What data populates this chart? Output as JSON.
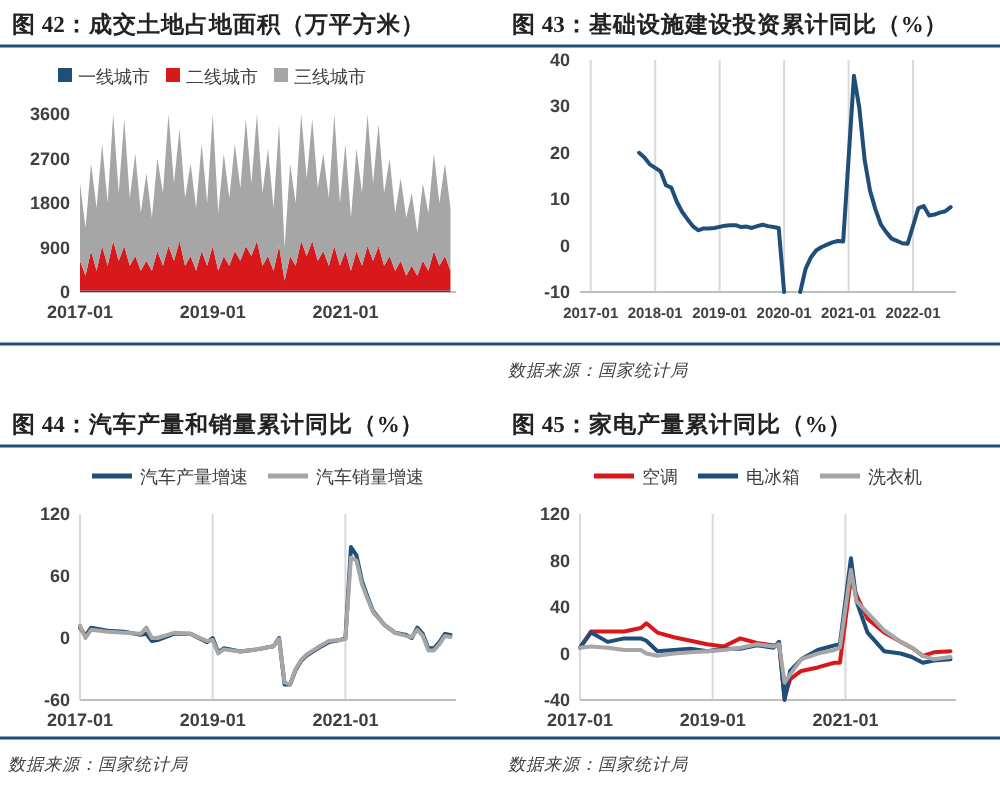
{
  "chart_data": [
    {
      "type": "area",
      "title": "图 42：成交土地占地面积（万平方米）",
      "stacked": true,
      "legend": "top",
      "xlim": [
        "2017-01",
        "2022-09"
      ],
      "xticks": [
        "2017-01",
        "2019-01",
        "2021-01"
      ],
      "ylim": [
        0,
        3600
      ],
      "yticks": [
        0,
        900,
        1800,
        2700,
        3600
      ],
      "x": [
        "2017-01",
        "2017-02",
        "2017-03",
        "2017-04",
        "2017-05",
        "2017-06",
        "2017-07",
        "2017-08",
        "2017-09",
        "2017-10",
        "2017-11",
        "2017-12",
        "2018-01",
        "2018-02",
        "2018-03",
        "2018-04",
        "2018-05",
        "2018-06",
        "2018-07",
        "2018-08",
        "2018-09",
        "2018-10",
        "2018-11",
        "2018-12",
        "2019-01",
        "2019-02",
        "2019-03",
        "2019-04",
        "2019-05",
        "2019-06",
        "2019-07",
        "2019-08",
        "2019-09",
        "2019-10",
        "2019-11",
        "2019-12",
        "2020-01",
        "2020-02",
        "2020-03",
        "2020-04",
        "2020-05",
        "2020-06",
        "2020-07",
        "2020-08",
        "2020-09",
        "2020-10",
        "2020-11",
        "2020-12",
        "2021-01",
        "2021-02",
        "2021-03",
        "2021-04",
        "2021-05",
        "2021-06",
        "2021-07",
        "2021-08",
        "2021-09",
        "2021-10",
        "2021-11",
        "2021-12",
        "2022-01",
        "2022-02",
        "2022-03",
        "2022-04",
        "2022-05",
        "2022-06",
        "2022-07",
        "2022-08"
      ],
      "series": [
        {
          "name": "一线城市",
          "color": "#1f4e79",
          "values": [
            30,
            30,
            30,
            30,
            30,
            30,
            30,
            30,
            30,
            30,
            30,
            30,
            30,
            30,
            30,
            30,
            30,
            30,
            30,
            30,
            30,
            30,
            30,
            30,
            30,
            30,
            30,
            30,
            30,
            30,
            30,
            30,
            30,
            30,
            30,
            30,
            30,
            30,
            30,
            30,
            30,
            30,
            30,
            30,
            30,
            30,
            30,
            30,
            30,
            30,
            30,
            30,
            30,
            30,
            30,
            30,
            30,
            30,
            30,
            30,
            30,
            30,
            30,
            30,
            30,
            30,
            30,
            30
          ]
        },
        {
          "name": "二线城市",
          "color": "#d7191c",
          "values": [
            600,
            300,
            800,
            400,
            900,
            500,
            1000,
            600,
            900,
            500,
            700,
            400,
            600,
            400,
            800,
            500,
            900,
            600,
            1000,
            500,
            700,
            400,
            800,
            500,
            900,
            400,
            700,
            500,
            800,
            600,
            900,
            700,
            1000,
            500,
            700,
            400,
            900,
            200,
            700,
            500,
            1000,
            700,
            1000,
            600,
            800,
            500,
            900,
            500,
            800,
            400,
            800,
            500,
            900,
            600,
            900,
            500,
            700,
            400,
            600,
            300,
            500,
            300,
            600,
            400,
            800,
            500,
            700,
            400
          ]
        },
        {
          "name": "三线城市",
          "color": "#a6a6a6",
          "values": [
            1570,
            970,
            1770,
            1270,
            2070,
            1270,
            2570,
            1370,
            2570,
            1370,
            2070,
            1170,
            1770,
            1070,
            1870,
            1470,
            2670,
            1570,
            2270,
            1370,
            1870,
            1270,
            2170,
            1270,
            2670,
            1170,
            2070,
            1370,
            2170,
            1470,
            2570,
            1470,
            2570,
            1470,
            2170,
            1270,
            2470,
            670,
            1870,
            1270,
            2570,
            1570,
            2470,
            1470,
            1970,
            1370,
            2670,
            1270,
            2170,
            1070,
            2070,
            1470,
            2670,
            1570,
            2470,
            1470,
            1970,
            1170,
            1670,
            1170,
            1470,
            870,
            1570,
            1170,
            1970,
            1270,
            1870,
            1270
          ]
        }
      ]
    },
    {
      "type": "line",
      "title": "图 43：基础设施建设投资累计同比（%）",
      "grid": "x",
      "xlim": [
        "2016-11",
        "2022-09"
      ],
      "xticks": [
        "2017-01",
        "2018-01",
        "2019-01",
        "2020-01",
        "2021-01",
        "2022-01"
      ],
      "ylim": [
        -10,
        40
      ],
      "yticks": [
        -10,
        0,
        10,
        20,
        30,
        40
      ],
      "annotations": [
        "数据来源：国家统计局"
      ],
      "x": [
        "2017-10",
        "2017-11",
        "2017-12",
        "2018-02",
        "2018-03",
        "2018-04",
        "2018-05",
        "2018-06",
        "2018-07",
        "2018-08",
        "2018-09",
        "2018-10",
        "2018-11",
        "2018-12",
        "2019-02",
        "2019-03",
        "2019-04",
        "2019-05",
        "2019-06",
        "2019-07",
        "2019-08",
        "2019-09",
        "2019-10",
        "2019-11",
        "2019-12",
        "2020-01",
        "2020-02",
        "2020-03",
        "2020-04",
        "2020-05",
        "2020-06",
        "2020-07",
        "2020-08",
        "2020-09",
        "2020-10",
        "2020-11",
        "2020-12",
        "2021-02",
        "2021-03",
        "2021-04",
        "2021-05",
        "2021-06",
        "2021-07",
        "2021-08",
        "2021-09",
        "2021-10",
        "2021-11",
        "2021-12",
        "2022-02",
        "2022-03",
        "2022-04",
        "2022-05",
        "2022-06",
        "2022-07",
        "2022-08"
      ],
      "series": [
        {
          "color": "#1f4e79",
          "values": [
            20,
            19,
            17.5,
            16,
            13,
            12.5,
            9.5,
            7.3,
            5.7,
            4.2,
            3.3,
            3.7,
            3.7,
            3.8,
            4.3,
            4.4,
            4.4,
            4,
            4.1,
            3.8,
            4.2,
            4.5,
            4.2,
            4,
            3.8,
            -10,
            null,
            null,
            -10,
            -5,
            -2.5,
            -1,
            -0.3,
            0.2,
            0.7,
            1,
            0.9,
            36.6,
            29.7,
            18.4,
            11.8,
            7.8,
            4.6,
            2.9,
            1.5,
            1,
            0.5,
            0.4,
            8.1,
            8.5,
            6.5,
            6.7,
            7.1,
            7.4,
            8.3
          ]
        }
      ]
    },
    {
      "type": "line",
      "title": "图 44：汽车产量和销量累计同比（%）",
      "legend": "top",
      "grid": "x",
      "xlim": [
        "2017-01",
        "2022-09"
      ],
      "xticks": [
        "2017-01",
        "2019-01",
        "2021-01"
      ],
      "ylim": [
        -60,
        120
      ],
      "yticks": [
        -60,
        0,
        60,
        120
      ],
      "annotations": [
        "数据来源：国家统计局"
      ],
      "x": [
        "2017-01",
        "2017-02",
        "2017-03",
        "2017-06",
        "2017-09",
        "2017-12",
        "2018-01",
        "2018-02",
        "2018-03",
        "2018-06",
        "2018-09",
        "2018-12",
        "2019-01",
        "2019-02",
        "2019-03",
        "2019-06",
        "2019-09",
        "2019-12",
        "2020-01",
        "2020-02",
        "2020-03",
        "2020-04",
        "2020-05",
        "2020-06",
        "2020-08",
        "2020-10",
        "2020-12",
        "2021-01",
        "2021-02",
        "2021-03",
        "2021-04",
        "2021-05",
        "2021-06",
        "2021-08",
        "2021-10",
        "2021-12",
        "2022-01",
        "2022-02",
        "2022-03",
        "2022-04",
        "2022-05",
        "2022-06",
        "2022-07",
        "2022-08"
      ],
      "series": [
        {
          "name": "汽车产量增速",
          "color": "#1f4e79",
          "values": [
            10,
            2,
            10,
            7,
            6,
            3,
            4,
            -3,
            -2,
            4,
            4,
            -4,
            0,
            -14,
            -10,
            -13,
            -11,
            -8,
            0,
            -45,
            -45,
            -31,
            -22,
            -17,
            -10,
            -4,
            -2,
            0,
            88,
            80,
            55,
            40,
            26,
            13,
            5,
            3,
            0,
            10,
            4,
            -10,
            -10,
            -4,
            4,
            3
          ]
        },
        {
          "name": "汽车销量增速",
          "color": "#a6a6a6",
          "values": [
            12,
            0,
            8,
            6,
            5,
            4,
            10,
            0,
            0,
            5,
            4,
            -3,
            -2,
            -15,
            -11,
            -13,
            -11,
            -8,
            -1,
            -43,
            -45,
            -30,
            -21,
            -16,
            -9,
            -3,
            -2,
            -1,
            78,
            75,
            52,
            38,
            25,
            13,
            5,
            2,
            1,
            8,
            2,
            -12,
            -12,
            -6,
            2,
            1
          ]
        }
      ]
    },
    {
      "type": "line",
      "title": "图 45：家电产量累计同比（%）",
      "legend": "top",
      "grid": "x",
      "xlim": [
        "2017-01",
        "2022-09"
      ],
      "xticks": [
        "2017-01",
        "2019-01",
        "2021-01"
      ],
      "ylim": [
        -40,
        120
      ],
      "yticks": [
        -40,
        0,
        40,
        80,
        120
      ],
      "annotations": [
        "数据来源：国家统计局"
      ],
      "x": [
        "2017-01",
        "2017-03",
        "2017-06",
        "2017-09",
        "2017-12",
        "2018-01",
        "2018-03",
        "2018-06",
        "2018-09",
        "2018-12",
        "2019-03",
        "2019-06",
        "2019-09",
        "2019-12",
        "2020-01",
        "2020-02",
        "2020-03",
        "2020-05",
        "2020-08",
        "2020-11",
        "2020-12",
        "2021-02",
        "2021-03",
        "2021-05",
        "2021-08",
        "2021-11",
        "2022-01",
        "2022-03",
        "2022-05",
        "2022-08"
      ],
      "series": [
        {
          "name": "空调",
          "color": "#d7191c",
          "values": [
            5,
            19,
            19,
            19,
            22,
            26,
            18,
            14,
            11,
            8,
            6,
            13,
            9,
            7,
            8,
            -38,
            -22,
            -15,
            -12,
            -8,
            -8,
            65,
            50,
            30,
            18,
            10,
            5,
            -2,
            1,
            2
          ]
        },
        {
          "name": "电冰箱",
          "color": "#1f4e79",
          "values": [
            5,
            18,
            10,
            13,
            13,
            11,
            2,
            3,
            4,
            2,
            4,
            4,
            7,
            5,
            10,
            -40,
            -15,
            -5,
            3,
            7,
            8,
            82,
            45,
            18,
            2,
            0,
            -3,
            -8,
            -6,
            -5
          ]
        },
        {
          "name": "洗衣机",
          "color": "#a6a6a6",
          "values": [
            5,
            6,
            5,
            3,
            3,
            0,
            -2,
            0,
            1,
            2,
            3,
            5,
            8,
            6,
            8,
            -25,
            -18,
            -5,
            0,
            3,
            5,
            72,
            45,
            35,
            20,
            10,
            5,
            -2,
            -5,
            -3
          ]
        }
      ]
    }
  ]
}
